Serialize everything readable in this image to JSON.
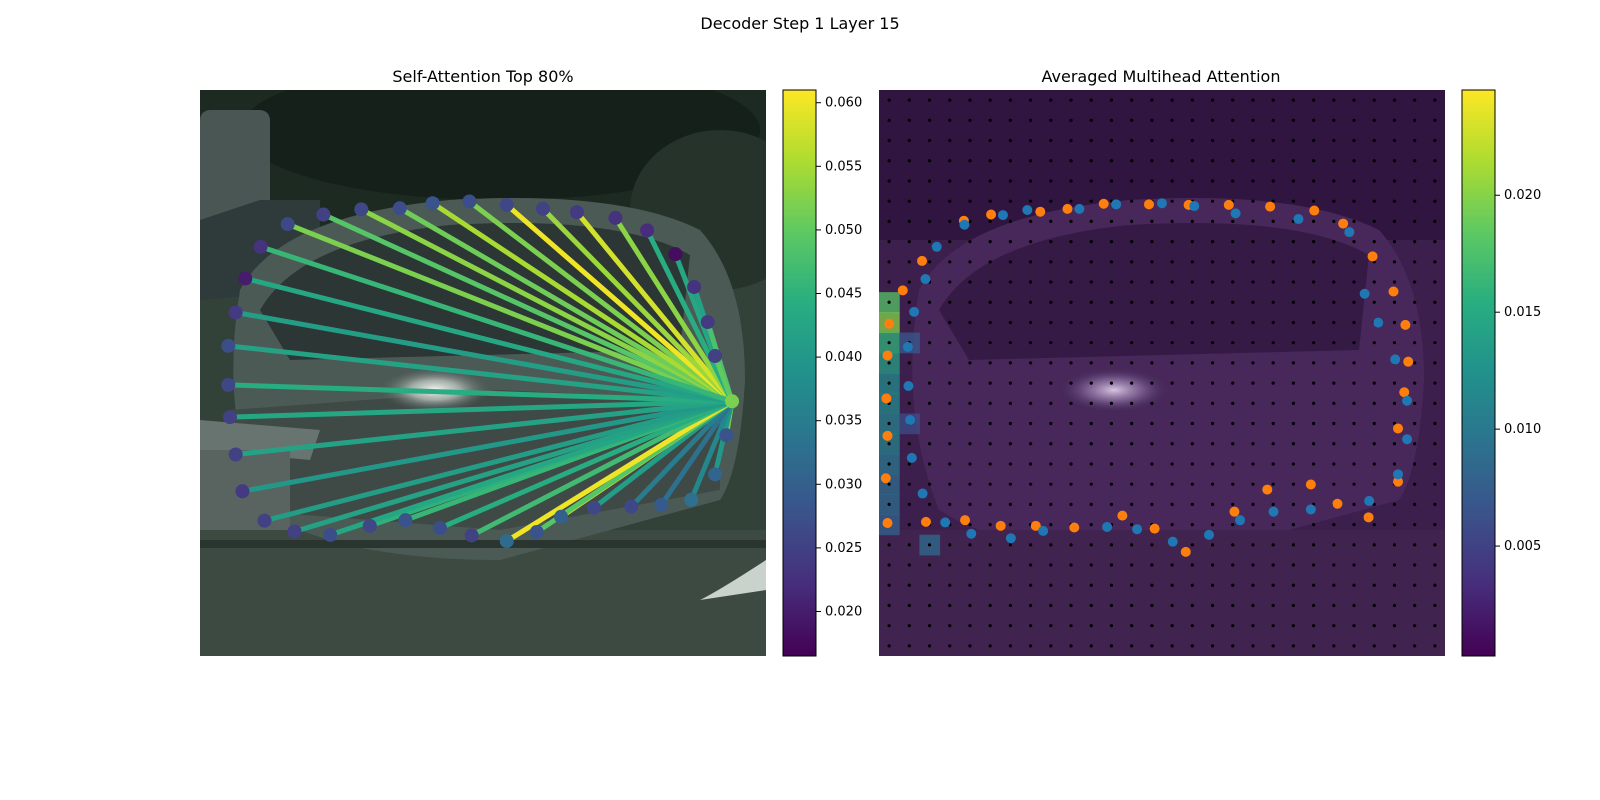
{
  "figure": {
    "title": "Decoder Step 1 Layer 15"
  },
  "chart_data": [
    {
      "type": "scatter",
      "title": "Self-Attention Top 80%",
      "description_of_marks": "polygon vertices (dots) colored by attention weight; lines from query vertex to attended vertices colored by weight",
      "colormap": "viridis",
      "colorbar": {
        "min": 0.0165,
        "max": 0.061,
        "ticks": [
          "0.020",
          "0.025",
          "0.030",
          "0.035",
          "0.040",
          "0.045",
          "0.050",
          "0.055",
          "0.060"
        ]
      },
      "query_point": {
        "x": 0.94,
        "y": 0.55
      },
      "points": [
        {
          "x": 0.155,
          "y": 0.237,
          "w": 0.026
        },
        {
          "x": 0.218,
          "y": 0.22,
          "w": 0.025
        },
        {
          "x": 0.285,
          "y": 0.211,
          "w": 0.026
        },
        {
          "x": 0.353,
          "y": 0.209,
          "w": 0.027
        },
        {
          "x": 0.411,
          "y": 0.2,
          "w": 0.028
        },
        {
          "x": 0.476,
          "y": 0.197,
          "w": 0.027
        },
        {
          "x": 0.542,
          "y": 0.203,
          "w": 0.026
        },
        {
          "x": 0.606,
          "y": 0.21,
          "w": 0.025
        },
        {
          "x": 0.666,
          "y": 0.216,
          "w": 0.024
        },
        {
          "x": 0.734,
          "y": 0.226,
          "w": 0.023
        },
        {
          "x": 0.79,
          "y": 0.248,
          "w": 0.022
        },
        {
          "x": 0.84,
          "y": 0.29,
          "w": 0.018
        },
        {
          "x": 0.873,
          "y": 0.348,
          "w": 0.023
        },
        {
          "x": 0.897,
          "y": 0.41,
          "w": 0.024
        },
        {
          "x": 0.91,
          "y": 0.47,
          "w": 0.025
        },
        {
          "x": 0.93,
          "y": 0.61,
          "w": 0.028
        },
        {
          "x": 0.91,
          "y": 0.679,
          "w": 0.031
        },
        {
          "x": 0.868,
          "y": 0.724,
          "w": 0.033
        },
        {
          "x": 0.815,
          "y": 0.733,
          "w": 0.029
        },
        {
          "x": 0.762,
          "y": 0.736,
          "w": 0.026
        },
        {
          "x": 0.696,
          "y": 0.738,
          "w": 0.026
        },
        {
          "x": 0.638,
          "y": 0.754,
          "w": 0.03
        },
        {
          "x": 0.595,
          "y": 0.781,
          "w": 0.028
        },
        {
          "x": 0.542,
          "y": 0.797,
          "w": 0.032
        },
        {
          "x": 0.48,
          "y": 0.787,
          "w": 0.025
        },
        {
          "x": 0.424,
          "y": 0.774,
          "w": 0.027
        },
        {
          "x": 0.363,
          "y": 0.76,
          "w": 0.028
        },
        {
          "x": 0.3,
          "y": 0.77,
          "w": 0.026
        },
        {
          "x": 0.23,
          "y": 0.786,
          "w": 0.027
        },
        {
          "x": 0.167,
          "y": 0.78,
          "w": 0.025
        },
        {
          "x": 0.114,
          "y": 0.761,
          "w": 0.025
        },
        {
          "x": 0.075,
          "y": 0.709,
          "w": 0.024
        },
        {
          "x": 0.063,
          "y": 0.644,
          "w": 0.025
        },
        {
          "x": 0.053,
          "y": 0.578,
          "w": 0.025
        },
        {
          "x": 0.05,
          "y": 0.521,
          "w": 0.026
        },
        {
          "x": 0.05,
          "y": 0.452,
          "w": 0.027
        },
        {
          "x": 0.063,
          "y": 0.393,
          "w": 0.024
        },
        {
          "x": 0.08,
          "y": 0.333,
          "w": 0.02
        },
        {
          "x": 0.107,
          "y": 0.277,
          "w": 0.023
        }
      ],
      "lines": [
        {
          "to": 0,
          "w": 0.052
        },
        {
          "to": 1,
          "w": 0.049
        },
        {
          "to": 2,
          "w": 0.053
        },
        {
          "to": 3,
          "w": 0.051
        },
        {
          "to": 4,
          "w": 0.055
        },
        {
          "to": 5,
          "w": 0.052
        },
        {
          "to": 6,
          "w": 0.06
        },
        {
          "to": 7,
          "w": 0.054
        },
        {
          "to": 8,
          "w": 0.058
        },
        {
          "to": 9,
          "w": 0.053
        },
        {
          "to": 10,
          "w": 0.044
        },
        {
          "to": 11,
          "w": 0.043
        },
        {
          "to": 12,
          "w": 0.042
        },
        {
          "to": 13,
          "w": 0.048
        },
        {
          "to": 14,
          "w": 0.05
        },
        {
          "to": 15,
          "w": 0.052
        },
        {
          "to": 16,
          "w": 0.04
        },
        {
          "to": 17,
          "w": 0.037
        },
        {
          "to": 18,
          "w": 0.033
        },
        {
          "to": 19,
          "w": 0.035
        },
        {
          "to": 20,
          "w": 0.041
        },
        {
          "to": 21,
          "w": 0.058
        },
        {
          "to": 22,
          "w": 0.049
        },
        {
          "to": 23,
          "w": 0.06
        },
        {
          "to": 24,
          "w": 0.047
        },
        {
          "to": 25,
          "w": 0.044
        },
        {
          "to": 26,
          "w": 0.046
        },
        {
          "to": 27,
          "w": 0.045
        },
        {
          "to": 28,
          "w": 0.043
        },
        {
          "to": 29,
          "w": 0.042
        },
        {
          "to": 30,
          "w": 0.041
        },
        {
          "to": 31,
          "w": 0.04
        },
        {
          "to": 32,
          "w": 0.042
        },
        {
          "to": 33,
          "w": 0.043
        },
        {
          "to": 34,
          "w": 0.044
        },
        {
          "to": 35,
          "w": 0.042
        },
        {
          "to": 36,
          "w": 0.041
        },
        {
          "to": 37,
          "w": 0.043
        },
        {
          "to": 38,
          "w": 0.046
        }
      ]
    },
    {
      "type": "heatmap",
      "title": "Averaged Multihead Attention",
      "colormap": "viridis",
      "colorbar": {
        "min": 0.0003,
        "max": 0.0245,
        "ticks": [
          "0.005",
          "0.010",
          "0.015",
          "0.020"
        ]
      },
      "grid_size": 28,
      "hot_cells": [
        {
          "col": 0,
          "row": 10,
          "v": 0.018
        },
        {
          "col": 0,
          "row": 11,
          "v": 0.02
        },
        {
          "col": 0,
          "row": 12,
          "v": 0.016
        },
        {
          "col": 0,
          "row": 13,
          "v": 0.014
        },
        {
          "col": 0,
          "row": 14,
          "v": 0.012
        },
        {
          "col": 0,
          "row": 15,
          "v": 0.012
        },
        {
          "col": 0,
          "row": 16,
          "v": 0.011
        },
        {
          "col": 0,
          "row": 17,
          "v": 0.011
        },
        {
          "col": 0,
          "row": 18,
          "v": 0.01
        },
        {
          "col": 0,
          "row": 19,
          "v": 0.009
        },
        {
          "col": 0,
          "row": 20,
          "v": 0.009
        },
        {
          "col": 0,
          "row": 21,
          "v": 0.008
        },
        {
          "col": 2,
          "row": 22,
          "v": 0.009
        },
        {
          "col": 1,
          "row": 12,
          "v": 0.007
        },
        {
          "col": 1,
          "row": 16,
          "v": 0.006
        }
      ],
      "predicted_points": [
        {
          "x": 0.285,
          "y": 0.215
        },
        {
          "x": 0.333,
          "y": 0.21
        },
        {
          "x": 0.397,
          "y": 0.201
        },
        {
          "x": 0.477,
          "y": 0.202
        },
        {
          "x": 0.547,
          "y": 0.203
        },
        {
          "x": 0.618,
          "y": 0.203
        },
        {
          "x": 0.691,
          "y": 0.206
        },
        {
          "x": 0.769,
          "y": 0.213
        },
        {
          "x": 0.82,
          "y": 0.236
        },
        {
          "x": 0.872,
          "y": 0.294
        },
        {
          "x": 0.909,
          "y": 0.356
        },
        {
          "x": 0.93,
          "y": 0.415
        },
        {
          "x": 0.935,
          "y": 0.48
        },
        {
          "x": 0.928,
          "y": 0.534
        },
        {
          "x": 0.917,
          "y": 0.598
        },
        {
          "x": 0.917,
          "y": 0.692
        },
        {
          "x": 0.865,
          "y": 0.755
        },
        {
          "x": 0.81,
          "y": 0.731
        },
        {
          "x": 0.763,
          "y": 0.697
        },
        {
          "x": 0.686,
          "y": 0.706
        },
        {
          "x": 0.628,
          "y": 0.745
        },
        {
          "x": 0.542,
          "y": 0.816
        },
        {
          "x": 0.487,
          "y": 0.775
        },
        {
          "x": 0.43,
          "y": 0.752
        },
        {
          "x": 0.345,
          "y": 0.773
        },
        {
          "x": 0.277,
          "y": 0.77
        },
        {
          "x": 0.215,
          "y": 0.77
        },
        {
          "x": 0.152,
          "y": 0.76
        },
        {
          "x": 0.083,
          "y": 0.763
        },
        {
          "x": 0.015,
          "y": 0.765
        },
        {
          "x": 0.012,
          "y": 0.686
        },
        {
          "x": 0.015,
          "y": 0.611
        },
        {
          "x": 0.013,
          "y": 0.545
        },
        {
          "x": 0.015,
          "y": 0.469
        },
        {
          "x": 0.018,
          "y": 0.413
        },
        {
          "x": 0.042,
          "y": 0.354
        },
        {
          "x": 0.076,
          "y": 0.302
        },
        {
          "x": 0.15,
          "y": 0.231
        },
        {
          "x": 0.198,
          "y": 0.22
        }
      ],
      "target_points": [
        {
          "x": 0.219,
          "y": 0.221
        },
        {
          "x": 0.262,
          "y": 0.212
        },
        {
          "x": 0.354,
          "y": 0.21
        },
        {
          "x": 0.419,
          "y": 0.202
        },
        {
          "x": 0.5,
          "y": 0.2
        },
        {
          "x": 0.557,
          "y": 0.205
        },
        {
          "x": 0.63,
          "y": 0.218
        },
        {
          "x": 0.741,
          "y": 0.228
        },
        {
          "x": 0.831,
          "y": 0.251
        },
        {
          "x": 0.858,
          "y": 0.36
        },
        {
          "x": 0.882,
          "y": 0.411
        },
        {
          "x": 0.912,
          "y": 0.476
        },
        {
          "x": 0.933,
          "y": 0.549
        },
        {
          "x": 0.933,
          "y": 0.617
        },
        {
          "x": 0.917,
          "y": 0.679
        },
        {
          "x": 0.866,
          "y": 0.726
        },
        {
          "x": 0.763,
          "y": 0.741
        },
        {
          "x": 0.697,
          "y": 0.745
        },
        {
          "x": 0.638,
          "y": 0.76
        },
        {
          "x": 0.583,
          "y": 0.786
        },
        {
          "x": 0.519,
          "y": 0.798
        },
        {
          "x": 0.456,
          "y": 0.776
        },
        {
          "x": 0.403,
          "y": 0.772
        },
        {
          "x": 0.29,
          "y": 0.779
        },
        {
          "x": 0.233,
          "y": 0.792
        },
        {
          "x": 0.163,
          "y": 0.784
        },
        {
          "x": 0.117,
          "y": 0.764
        },
        {
          "x": 0.077,
          "y": 0.713
        },
        {
          "x": 0.058,
          "y": 0.65
        },
        {
          "x": 0.055,
          "y": 0.583
        },
        {
          "x": 0.052,
          "y": 0.523
        },
        {
          "x": 0.051,
          "y": 0.454
        },
        {
          "x": 0.062,
          "y": 0.392
        },
        {
          "x": 0.082,
          "y": 0.334
        },
        {
          "x": 0.102,
          "y": 0.277
        },
        {
          "x": 0.151,
          "y": 0.238
        }
      ]
    }
  ]
}
